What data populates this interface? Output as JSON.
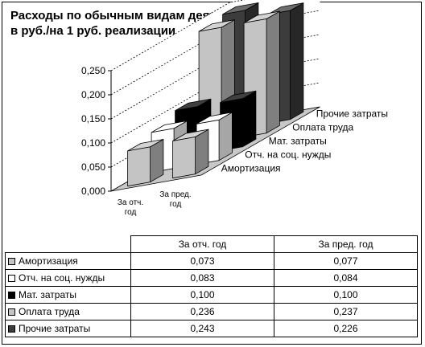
{
  "title_line1": "Расходы по обычным видам деятельности,",
  "title_line2": "в руб./на 1 руб. реализации",
  "colors": {
    "Амортизация": "#c4c4c4",
    "Отч. на соц. нужды": "#ffffff",
    "Мат. затраты": "#000000",
    "Оплата труда": "#c4c4c4",
    "Прочие затраты": "#3c3c3c",
    "floor": "#c8c8c8"
  },
  "chart_data": {
    "type": "bar",
    "subtype": "3d-clustered",
    "categories": [
      "За отч. год",
      "За пред. год"
    ],
    "series": [
      {
        "name": "Амортизация",
        "values": [
          0.073,
          0.077
        ]
      },
      {
        "name": "Отч. на соц. нужды",
        "values": [
          0.083,
          0.084
        ]
      },
      {
        "name": "Мат. затраты",
        "values": [
          0.1,
          0.1
        ]
      },
      {
        "name": "Оплата труда",
        "values": [
          0.236,
          0.237
        ]
      },
      {
        "name": "Прочие затраты",
        "values": [
          0.243,
          0.226
        ]
      }
    ],
    "ylim": [
      0,
      0.25
    ],
    "y_ticks": [
      "0,000",
      "0,050",
      "0,100",
      "0,150",
      "0,200",
      "0,250"
    ],
    "category_labels": [
      [
        "За отч.",
        "год"
      ],
      [
        "За пред.",
        "год"
      ]
    ],
    "grid": true,
    "legend": "none"
  },
  "table": {
    "headers": [
      "За отч. год",
      "За пред. год"
    ],
    "rows": [
      {
        "label": "Амортизация",
        "values": [
          "0,073",
          "0,077"
        ]
      },
      {
        "label": "Отч. на соц. нужды",
        "values": [
          "0,083",
          "0,084"
        ]
      },
      {
        "label": "Мат. затраты",
        "values": [
          "0,100",
          "0,100"
        ]
      },
      {
        "label": "Оплата труда",
        "values": [
          "0,236",
          "0,237"
        ]
      },
      {
        "label": "Прочие затраты",
        "values": [
          "0,243",
          "0,226"
        ]
      }
    ]
  }
}
